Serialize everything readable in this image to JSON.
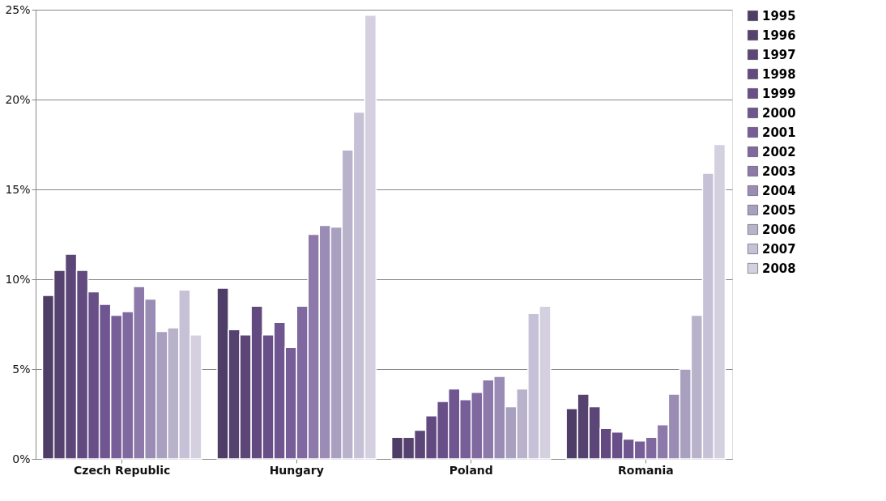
{
  "chart_data": {
    "type": "bar",
    "categories": [
      "Czech Republic",
      "Hungary",
      "Poland",
      "Romania"
    ],
    "series": [
      {
        "name": "1995",
        "color": "#4e3d66",
        "values": [
          9.1,
          9.5,
          1.2,
          2.8
        ]
      },
      {
        "name": "1996",
        "color": "#56426f",
        "values": [
          10.5,
          7.2,
          1.2,
          3.6
        ]
      },
      {
        "name": "1997",
        "color": "#5c4677",
        "values": [
          11.4,
          6.9,
          1.6,
          2.9
        ]
      },
      {
        "name": "1998",
        "color": "#624a80",
        "values": [
          10.5,
          8.5,
          2.4,
          1.7
        ]
      },
      {
        "name": "1999",
        "color": "#684f88",
        "values": [
          9.3,
          6.9,
          3.2,
          1.5
        ]
      },
      {
        "name": "2000",
        "color": "#6f5690",
        "values": [
          8.6,
          7.6,
          3.9,
          1.1
        ]
      },
      {
        "name": "2001",
        "color": "#775e98",
        "values": [
          8.0,
          6.2,
          3.3,
          1.0
        ]
      },
      {
        "name": "2002",
        "color": "#8068a0",
        "values": [
          8.2,
          8.5,
          3.7,
          1.2
        ]
      },
      {
        "name": "2003",
        "color": "#8d7aaa",
        "values": [
          9.6,
          12.5,
          4.4,
          1.9
        ]
      },
      {
        "name": "2004",
        "color": "#9a8cb5",
        "values": [
          8.9,
          13.0,
          4.6,
          3.6
        ]
      },
      {
        "name": "2005",
        "color": "#a9a0c0",
        "values": [
          7.1,
          12.9,
          2.9,
          5.0
        ]
      },
      {
        "name": "2006",
        "color": "#b8b2cb",
        "values": [
          7.3,
          17.2,
          3.9,
          8.0
        ]
      },
      {
        "name": "2007",
        "color": "#c6c1d6",
        "values": [
          9.4,
          19.3,
          8.1,
          15.9
        ]
      },
      {
        "name": "2008",
        "color": "#d4d0e0",
        "values": [
          6.9,
          24.7,
          8.5,
          17.5
        ]
      }
    ],
    "ylim": [
      0,
      25
    ],
    "yticks": [
      {
        "value": 0,
        "label": "0%"
      },
      {
        "value": 5,
        "label": "5%"
      },
      {
        "value": 10,
        "label": "10%"
      },
      {
        "value": 15,
        "label": "15%"
      },
      {
        "value": 20,
        "label": "20%"
      },
      {
        "value": 25,
        "label": "25%"
      }
    ],
    "grid": "y",
    "legend": "right"
  }
}
